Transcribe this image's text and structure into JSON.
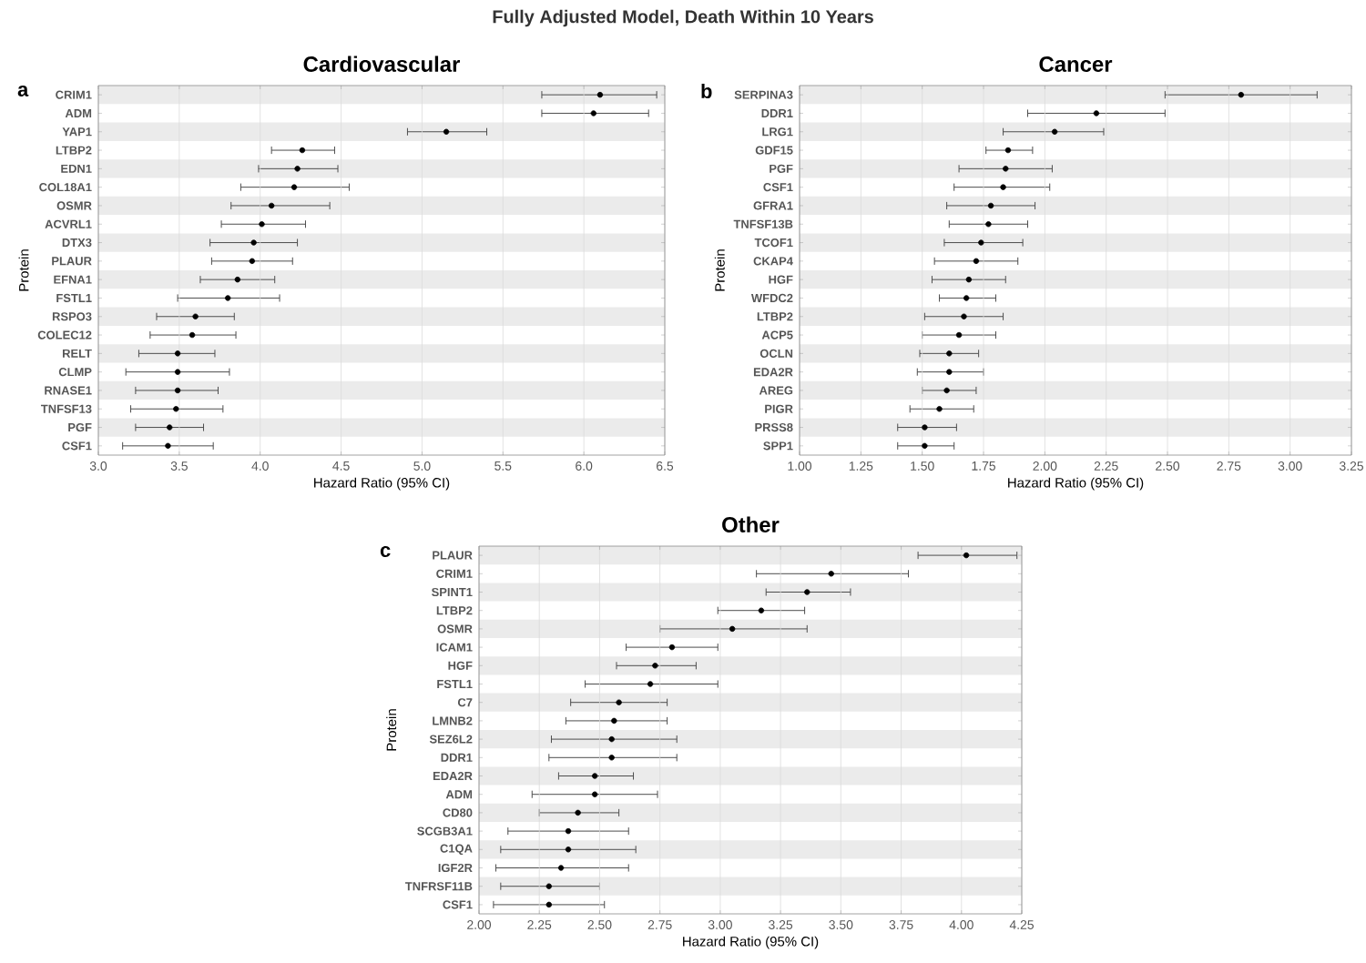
{
  "chart_data": [
    {
      "type": "scatter",
      "orientation": "horizontal",
      "title": "Cardiovascular",
      "xlabel": "Hazard Ratio (95% CI)",
      "ylabel": "Protein",
      "annotations": [
        "Fully Adjusted Model, Death Within 10 Years",
        "a"
      ],
      "grid": "x",
      "marker": "circle",
      "color": "#000000",
      "categories": [
        "CRIM1",
        "ADM",
        "YAP1",
        "LTBP2",
        "EDN1",
        "COL18A1",
        "OSMR",
        "ACVRL1",
        "DTX3",
        "PLAUR",
        "EFNA1",
        "FSTL1",
        "RSPO3",
        "COLEC12",
        "RELT",
        "CLMP",
        "RNASE1",
        "TNFSF13",
        "PGF",
        "CSF1"
      ],
      "values": [
        6.1,
        6.06,
        5.15,
        4.26,
        4.23,
        4.21,
        4.07,
        4.01,
        3.96,
        3.95,
        3.86,
        3.8,
        3.6,
        3.58,
        3.49,
        3.49,
        3.49,
        3.48,
        3.44,
        3.43
      ],
      "errors": [
        [
          5.74,
          6.45
        ],
        [
          5.74,
          6.4
        ],
        [
          4.91,
          5.4
        ],
        [
          4.07,
          4.46
        ],
        [
          3.99,
          4.48
        ],
        [
          3.88,
          4.55
        ],
        [
          3.82,
          4.43
        ],
        [
          3.76,
          4.28
        ],
        [
          3.69,
          4.23
        ],
        [
          3.7,
          4.2
        ],
        [
          3.63,
          4.09
        ],
        [
          3.49,
          4.12
        ],
        [
          3.36,
          3.84
        ],
        [
          3.32,
          3.85
        ],
        [
          3.25,
          3.72
        ],
        [
          3.17,
          3.81
        ],
        [
          3.23,
          3.74
        ],
        [
          3.2,
          3.77
        ],
        [
          3.23,
          3.65
        ],
        [
          3.15,
          3.71
        ]
      ],
      "xlim": [
        3.0,
        6.5
      ],
      "xticks": [
        {
          "value": 3.0,
          "label": "3.0"
        },
        {
          "value": 3.5,
          "label": "3.5"
        },
        {
          "value": 4.0,
          "label": "4.0"
        },
        {
          "value": 4.5,
          "label": "4.5"
        },
        {
          "value": 5.0,
          "label": "5.0"
        },
        {
          "value": 5.5,
          "label": "5.5"
        },
        {
          "value": 6.0,
          "label": "6.0"
        },
        {
          "value": 6.5,
          "label": "6.5"
        }
      ]
    },
    {
      "type": "scatter",
      "orientation": "horizontal",
      "title": "Cancer",
      "xlabel": "Hazard Ratio (95% CI)",
      "ylabel": "Protein",
      "annotations": [
        "b"
      ],
      "grid": "x",
      "marker": "circle",
      "color": "#000000",
      "categories": [
        "SERPINA3",
        "DDR1",
        "LRG1",
        "GDF15",
        "PGF",
        "CSF1",
        "GFRA1",
        "TNFSF13B",
        "TCOF1",
        "CKAP4",
        "HGF",
        "WFDC2",
        "LTBP2",
        "ACP5",
        "OCLN",
        "EDA2R",
        "AREG",
        "PIGR",
        "PRSS8",
        "SPP1"
      ],
      "values": [
        2.8,
        2.21,
        2.04,
        1.85,
        1.84,
        1.83,
        1.78,
        1.77,
        1.74,
        1.72,
        1.69,
        1.68,
        1.67,
        1.65,
        1.61,
        1.61,
        1.6,
        1.57,
        1.51,
        1.51
      ],
      "errors": [
        [
          2.49,
          3.11
        ],
        [
          1.93,
          2.49
        ],
        [
          1.83,
          2.24
        ],
        [
          1.76,
          1.95
        ],
        [
          1.65,
          2.03
        ],
        [
          1.63,
          2.02
        ],
        [
          1.6,
          1.96
        ],
        [
          1.61,
          1.93
        ],
        [
          1.59,
          1.91
        ],
        [
          1.55,
          1.89
        ],
        [
          1.54,
          1.84
        ],
        [
          1.57,
          1.8
        ],
        [
          1.51,
          1.83
        ],
        [
          1.5,
          1.8
        ],
        [
          1.49,
          1.73
        ],
        [
          1.48,
          1.75
        ],
        [
          1.5,
          1.72
        ],
        [
          1.45,
          1.71
        ],
        [
          1.4,
          1.64
        ],
        [
          1.4,
          1.63
        ]
      ],
      "xlim": [
        1.0,
        3.25
      ],
      "xticks": [
        {
          "value": 1.0,
          "label": "1.00"
        },
        {
          "value": 1.25,
          "label": "1.25"
        },
        {
          "value": 1.5,
          "label": "1.50"
        },
        {
          "value": 1.75,
          "label": "1.75"
        },
        {
          "value": 2.0,
          "label": "2.00"
        },
        {
          "value": 2.25,
          "label": "2.25"
        },
        {
          "value": 2.5,
          "label": "2.50"
        },
        {
          "value": 2.75,
          "label": "2.75"
        },
        {
          "value": 3.0,
          "label": "3.00"
        },
        {
          "value": 3.25,
          "label": "3.25"
        }
      ]
    },
    {
      "type": "scatter",
      "orientation": "horizontal",
      "title": "Other",
      "xlabel": "Hazard Ratio (95% CI)",
      "ylabel": "Protein",
      "annotations": [
        "c"
      ],
      "grid": "x",
      "marker": "circle",
      "color": "#000000",
      "categories": [
        "PLAUR",
        "CRIM1",
        "SPINT1",
        "LTBP2",
        "OSMR",
        "ICAM1",
        "HGF",
        "FSTL1",
        "C7",
        "LMNB2",
        "SEZ6L2",
        "DDR1",
        "EDA2R",
        "ADM",
        "CD80",
        "SCGB3A1",
        "C1QA",
        "IGF2R",
        "TNFRSF11B",
        "CSF1"
      ],
      "values": [
        4.02,
        3.46,
        3.36,
        3.17,
        3.05,
        2.8,
        2.73,
        2.71,
        2.58,
        2.56,
        2.55,
        2.55,
        2.48,
        2.48,
        2.41,
        2.37,
        2.37,
        2.34,
        2.29,
        2.29
      ],
      "errors": [
        [
          3.82,
          4.23
        ],
        [
          3.15,
          3.78
        ],
        [
          3.19,
          3.54
        ],
        [
          2.99,
          3.35
        ],
        [
          2.75,
          3.36
        ],
        [
          2.61,
          2.99
        ],
        [
          2.57,
          2.9
        ],
        [
          2.44,
          2.99
        ],
        [
          2.38,
          2.78
        ],
        [
          2.36,
          2.78
        ],
        [
          2.3,
          2.82
        ],
        [
          2.29,
          2.82
        ],
        [
          2.33,
          2.64
        ],
        [
          2.22,
          2.74
        ],
        [
          2.25,
          2.58
        ],
        [
          2.12,
          2.62
        ],
        [
          2.09,
          2.65
        ],
        [
          2.07,
          2.62
        ],
        [
          2.09,
          2.5
        ],
        [
          2.06,
          2.52
        ]
      ],
      "xlim": [
        2.0,
        4.25
      ],
      "xticks": [
        {
          "value": 2.0,
          "label": "2.00"
        },
        {
          "value": 2.25,
          "label": "2.25"
        },
        {
          "value": 2.5,
          "label": "2.50"
        },
        {
          "value": 2.75,
          "label": "2.75"
        },
        {
          "value": 3.0,
          "label": "3.00"
        },
        {
          "value": 3.25,
          "label": "3.25"
        },
        {
          "value": 3.5,
          "label": "3.50"
        },
        {
          "value": 3.75,
          "label": "3.75"
        },
        {
          "value": 4.0,
          "label": "4.00"
        },
        {
          "value": 4.25,
          "label": "4.25"
        }
      ]
    }
  ]
}
